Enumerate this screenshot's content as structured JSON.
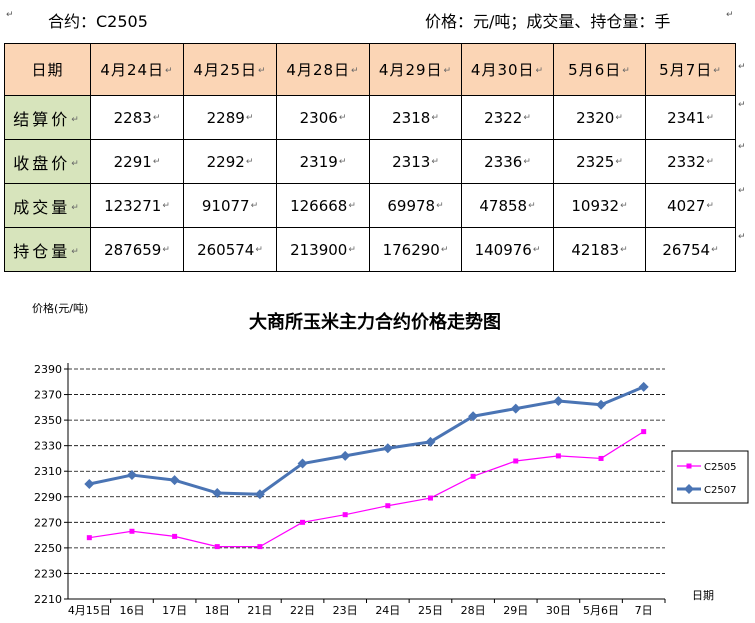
{
  "header": {
    "contract": "合约：C2505",
    "units": "价格：元/吨；成交量、持仓量：手"
  },
  "table": {
    "header_label": "日期",
    "dates": [
      "4月24日",
      "4月25日",
      "4月28日",
      "4月29日",
      "4月30日",
      "5月6日",
      "5月7日"
    ],
    "rows": [
      {
        "label": "结算价",
        "values": [
          "2283",
          "2289",
          "2306",
          "2318",
          "2322",
          "2320",
          "2341"
        ]
      },
      {
        "label": "收盘价",
        "values": [
          "2291",
          "2292",
          "2319",
          "2313",
          "2336",
          "2325",
          "2332"
        ]
      },
      {
        "label": "成交量",
        "values": [
          "123271",
          "91077",
          "126668",
          "69978",
          "47858",
          "10932",
          "4027"
        ]
      },
      {
        "label": "持仓量",
        "values": [
          "287659",
          "260574",
          "213900",
          "176290",
          "140976",
          "42183",
          "26754"
        ]
      }
    ]
  },
  "chart_data": {
    "type": "line",
    "title": "大商所玉米主力合约价格走势图",
    "ylabel": "价格(元/吨)",
    "xlabel": "日期",
    "categories": [
      "4月15日",
      "16日",
      "17日",
      "18日",
      "21日",
      "22日",
      "23日",
      "24日",
      "25日",
      "28日",
      "29日",
      "30日",
      "5月6日",
      "7日"
    ],
    "ylim": [
      2210,
      2390
    ],
    "yticks": [
      "2210",
      "2230",
      "2250",
      "2270",
      "2290",
      "2310",
      "2330",
      "2350",
      "2370",
      "2390"
    ],
    "grid": "horizontal-dashed",
    "legend": "right",
    "series": [
      {
        "name": "C2505",
        "color": "#ff00ff",
        "marker": "square",
        "values": [
          2258,
          2263,
          2259,
          2251,
          2251,
          2270,
          2276,
          2283,
          2289,
          2306,
          2318,
          2322,
          2320,
          2341
        ]
      },
      {
        "name": "C2507",
        "color": "#4a74b4",
        "marker": "diamond",
        "values": [
          2300,
          2307,
          2303,
          2293,
          2292,
          2316,
          2322,
          2328,
          2333,
          2353,
          2359,
          2365,
          2362,
          2376
        ]
      }
    ]
  }
}
